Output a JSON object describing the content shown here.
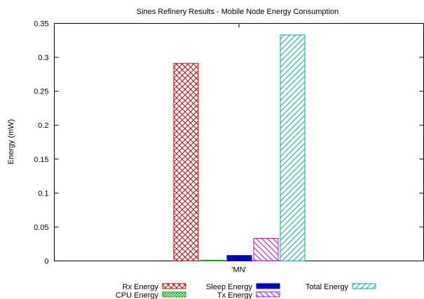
{
  "chart_data": {
    "type": "bar",
    "title": "Sines Refinery Results - Mobile Node Energy Consumption",
    "xlabel": "",
    "ylabel": "Energy (mW)",
    "categories": [
      "'MN'"
    ],
    "ylim": [
      0,
      0.35
    ],
    "yticks": [
      "0",
      "0.05",
      "0.1",
      "0.15",
      "0.2",
      "0.25",
      "0.3",
      "0.35"
    ],
    "grid": false,
    "legend_position": "bottom",
    "series": [
      {
        "name": "Rx Energy",
        "values": [
          0.291
        ],
        "color": "#cc0000",
        "pattern": "crosshatch"
      },
      {
        "name": "CPU Energy",
        "values": [
          0.001
        ],
        "color": "#00aa00",
        "pattern": "fine-crosshatch"
      },
      {
        "name": "Sleep Energy",
        "values": [
          0.008
        ],
        "color": "#0000cc",
        "pattern": "solid"
      },
      {
        "name": "Tx Energy",
        "values": [
          0.033
        ],
        "color": "#cc00cc",
        "pattern": "diagonal-down"
      },
      {
        "name": "Total Energy",
        "values": [
          0.333
        ],
        "color": "#00aaaa",
        "pattern": "diagonal-up"
      }
    ]
  }
}
